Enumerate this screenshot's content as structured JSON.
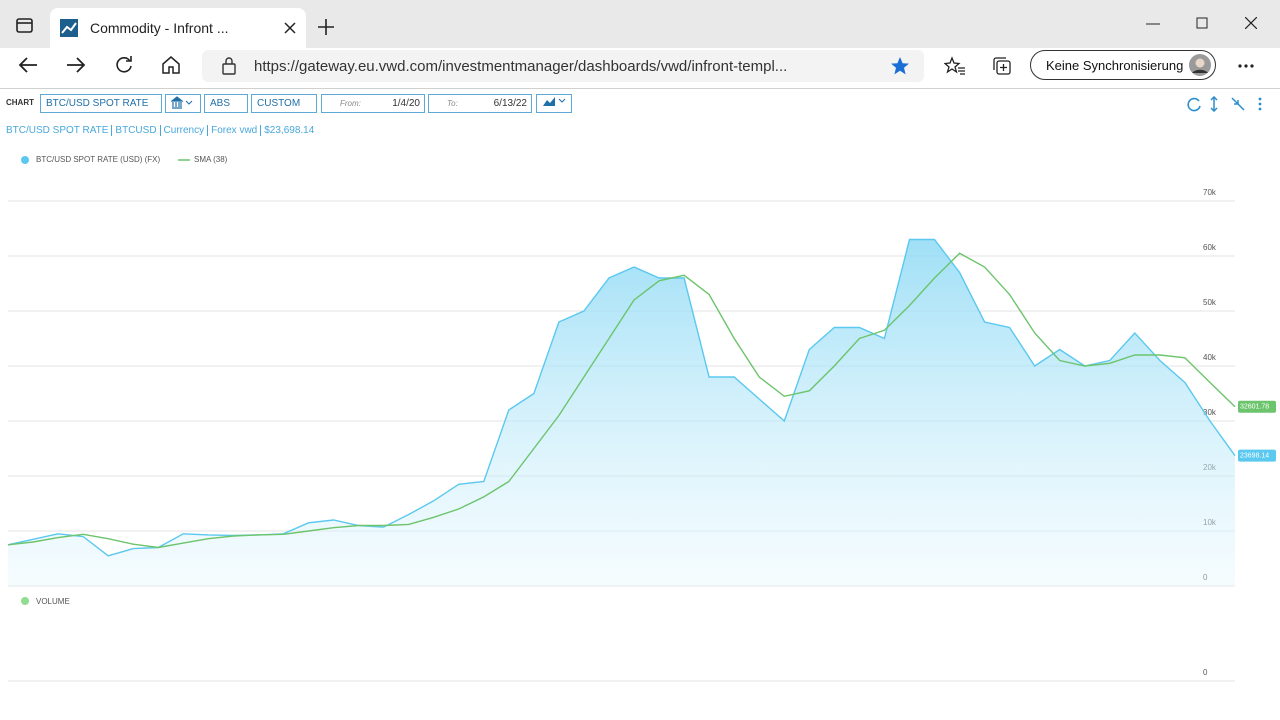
{
  "browser": {
    "tab_title": "Commodity - Infront ...",
    "url": "https://gateway.eu.vwd.com/investmentmanager/dashboards/vwd/infront-templ...",
    "profile": "Keine Synchronisierung"
  },
  "toolbar": {
    "label": "CHART",
    "instrument": "BTC/USD SPOT RATE",
    "mode": "ABS",
    "period": "CUSTOM",
    "from_label": "From:",
    "from": "1/4/20",
    "to_label": "To:",
    "to": "6/13/22"
  },
  "info": [
    "BTC/USD SPOT RATE",
    "BTCUSD",
    "Currency",
    "Forex vwd",
    "$23,698.14"
  ],
  "chart_data": {
    "type": "area",
    "series": [
      {
        "name": "BTC/USD SPOT RATE (USD) (FX)",
        "type": "area",
        "color": "#5bc8ef",
        "values": [
          7500,
          8500,
          9500,
          9000,
          5500,
          6800,
          7000,
          9500,
          9300,
          9200,
          9300,
          9500,
          11500,
          12000,
          11000,
          10700,
          13000,
          15500,
          18500,
          19000,
          32000,
          35000,
          48000,
          50000,
          56000,
          58000,
          56000,
          56000,
          38000,
          38000,
          34000,
          30000,
          43000,
          47000,
          47000,
          45000,
          63000,
          63000,
          57000,
          48000,
          47000,
          40000,
          43000,
          40000,
          41000,
          46000,
          41000,
          37000,
          30000,
          23698.14
        ],
        "value_labels": [
          null,
          null,
          null,
          null,
          null,
          null,
          null,
          null,
          null,
          null,
          null,
          null,
          null,
          null,
          null,
          null,
          null,
          null,
          null,
          null,
          null,
          null,
          null,
          null,
          null,
          null,
          null,
          null,
          null,
          null,
          null,
          null,
          null,
          null,
          null,
          null,
          null,
          null,
          null,
          null,
          null,
          null,
          null,
          null,
          null,
          null,
          null,
          null,
          null,
          "23698.14"
        ]
      },
      {
        "name": "SMA (38)",
        "type": "line",
        "color": "#6cc46c",
        "values": [
          7500,
          8000,
          8800,
          9400,
          8600,
          7600,
          7000,
          7800,
          8600,
          9100,
          9300,
          9400,
          10000,
          10600,
          11000,
          11000,
          11200,
          12500,
          14000,
          16200,
          19000,
          25000,
          31000,
          38000,
          45000,
          52000,
          55500,
          56500,
          53000,
          45000,
          38000,
          34500,
          35500,
          40000,
          45000,
          46500,
          51000,
          56000,
          60500,
          58000,
          53000,
          46000,
          41000,
          40000,
          40500,
          42000,
          42000,
          41500,
          37000,
          32601.78
        ],
        "value_labels": [
          null,
          null,
          null,
          null,
          null,
          null,
          null,
          null,
          null,
          null,
          null,
          null,
          null,
          null,
          null,
          null,
          null,
          null,
          null,
          null,
          null,
          null,
          null,
          null,
          null,
          null,
          null,
          null,
          null,
          null,
          null,
          null,
          null,
          null,
          null,
          null,
          null,
          null,
          null,
          null,
          null,
          null,
          null,
          null,
          null,
          null,
          null,
          null,
          null,
          "32601.78"
        ]
      }
    ],
    "ylim": [
      0,
      70000
    ],
    "yticks": [
      0,
      {
        "value": 10000,
        "label": "10k"
      },
      {
        "value": 20000,
        "label": "20k"
      },
      {
        "value": 30000,
        "label": "30k"
      },
      {
        "value": 40000,
        "label": "40k"
      },
      {
        "value": 50000,
        "label": "50k"
      },
      {
        "value": 60000,
        "label": "60k"
      },
      {
        "value": 70000,
        "label": "70k"
      }
    ],
    "grid": true
  },
  "volume_panel": {
    "legend": "VOLUME",
    "color": "#90dc90",
    "yticks": [
      0
    ]
  }
}
